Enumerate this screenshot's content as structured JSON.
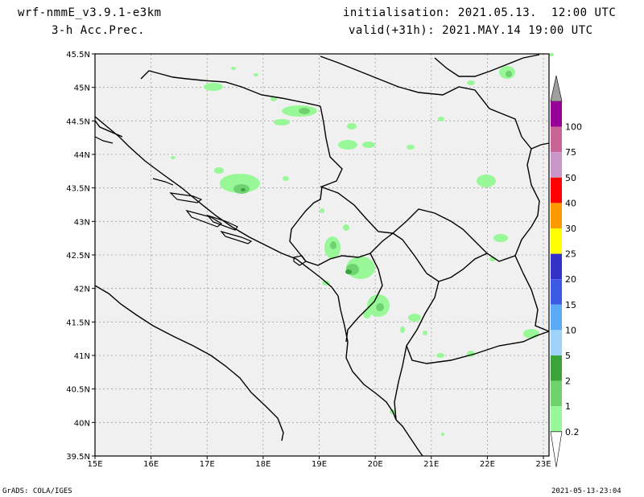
{
  "header": {
    "model": "wrf-nmmE_v3.9.1-e3km",
    "field": "3-h Acc.Prec.",
    "initialisation": "initialisation: 2021.05.13.  12:00 UTC",
    "valid": "valid(+31h): 2021.MAY.14 19:00 UTC"
  },
  "map": {
    "lon_labels": [
      "15E",
      "16E",
      "17E",
      "18E",
      "19E",
      "20E",
      "21E",
      "22E",
      "23E"
    ],
    "lat_labels": [
      "45.5N",
      "45N",
      "44.5N",
      "44N",
      "43.5N",
      "43N",
      "42.5N",
      "42N",
      "41.5N",
      "41N",
      "40.5N",
      "40N",
      "39.5N"
    ],
    "background_color": "#f0f0f0"
  },
  "colorbar": {
    "labels": [
      "0.2",
      "1",
      "2",
      "5",
      "10",
      "15",
      "20",
      "25",
      "30",
      "40",
      "50",
      "75",
      "100"
    ],
    "colors": [
      "#98f898",
      "#6ed36e",
      "#3aa33a",
      "#a0d2fa",
      "#5aaaf5",
      "#3c5ae6",
      "#3232c8",
      "#ffff00",
      "#ff9900",
      "#ff0000",
      "#c896c8",
      "#c86496",
      "#960096"
    ],
    "top_color": "#a0a0a0"
  },
  "footer": {
    "credit": "GrADS: COLA/IGES",
    "timestamp": "2021-05-13-23:04"
  }
}
